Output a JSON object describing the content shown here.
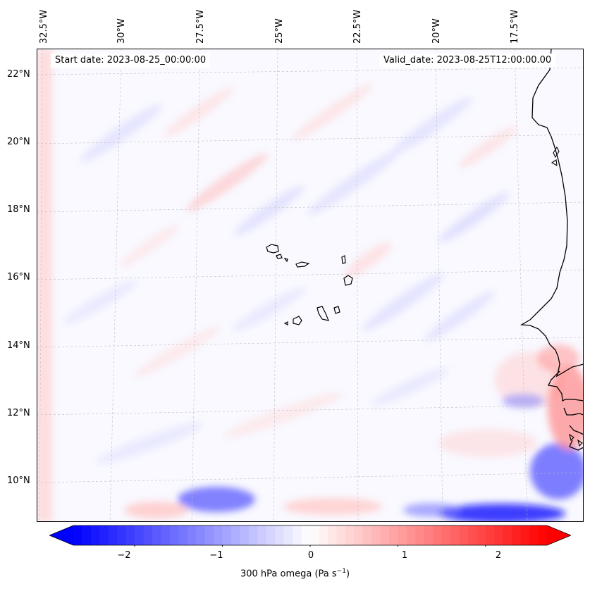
{
  "map": {
    "start_date": "Start date: 2023-08-25_00:00:00",
    "valid_date": "Valid_date: 2023-08-25T12:00:00.00",
    "lon_labels": [
      "32.5°W",
      "30°W",
      "27.5°W",
      "25°W",
      "22.5°W",
      "20°W",
      "17.5°W"
    ],
    "lat_labels": [
      "22°N",
      "20°N",
      "18°N",
      "16°N",
      "14°N",
      "12°N",
      "10°N"
    ],
    "field": "300 hPa omega",
    "colormap": "bwr",
    "colors": {
      "negative": "#0000ff",
      "zero": "#ffffff",
      "positive": "#ff0000",
      "coast": "#000000",
      "grid": "#bbbbbb"
    }
  },
  "colorbar": {
    "label_prefix": "300 hPa omega (Pa s",
    "label_exp": "−1",
    "label_suffix": ")",
    "ticks": [
      "−2",
      "−1",
      "0",
      "1",
      "2"
    ],
    "tick_values": [
      -2,
      -1,
      0,
      1,
      2
    ],
    "range": [
      -2.7,
      2.7
    ],
    "extend": "both"
  }
}
